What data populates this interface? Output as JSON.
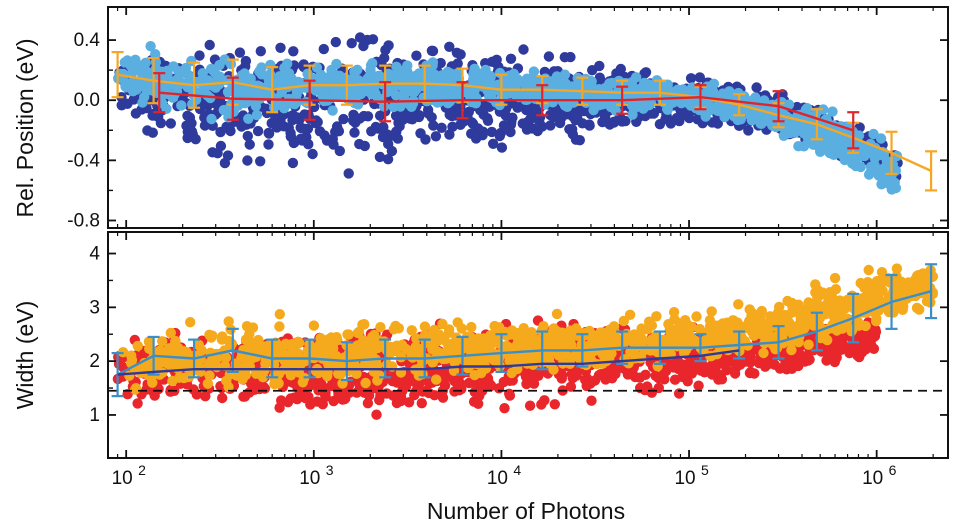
{
  "chart_data": [
    {
      "type": "scatter",
      "panel": "top",
      "ylabel": "Rel. Position (eV)",
      "xscale": "log",
      "xlim": [
        80,
        2400000
      ],
      "ylim": [
        -0.85,
        0.62
      ],
      "yticks": [
        0.4,
        0.0,
        -0.4,
        -0.8
      ],
      "ytick_labels": [
        "0.4",
        "0.0",
        "-0.4",
        "-0.8"
      ],
      "grid": false,
      "series": [
        {
          "color": "#2e3a9c",
          "kind": "scatter-band",
          "x": [
            90,
            150,
            250,
            400,
            700,
            1000,
            1800,
            3000,
            5000,
            9000,
            15000,
            30000,
            60000,
            120000,
            250000,
            500000,
            900000,
            1300000
          ],
          "y_upper": [
            0.3,
            0.45,
            0.5,
            0.5,
            0.5,
            0.52,
            0.55,
            0.55,
            0.5,
            0.42,
            0.38,
            0.3,
            0.25,
            0.2,
            0.12,
            0.0,
            -0.15,
            -0.3
          ],
          "y_lower": [
            -0.1,
            -0.4,
            -0.55,
            -0.55,
            -0.55,
            -0.6,
            -0.6,
            -0.55,
            -0.5,
            -0.45,
            -0.35,
            -0.3,
            -0.25,
            -0.2,
            -0.25,
            -0.35,
            -0.5,
            -0.62
          ]
        },
        {
          "color": "#5aafe0",
          "kind": "scatter-band",
          "x": [
            90,
            150,
            250,
            400,
            700,
            1000,
            2000,
            4000,
            8000,
            15000,
            30000,
            60000,
            120000,
            250000,
            500000,
            900000,
            1300000
          ],
          "y_upper": [
            0.4,
            0.42,
            0.35,
            0.32,
            0.3,
            0.3,
            0.3,
            0.28,
            0.25,
            0.22,
            0.2,
            0.18,
            0.15,
            0.1,
            0.0,
            -0.15,
            -0.3
          ],
          "y_lower": [
            0.0,
            -0.2,
            -0.2,
            -0.18,
            -0.15,
            -0.12,
            -0.1,
            -0.1,
            -0.08,
            -0.08,
            -0.1,
            -0.12,
            -0.15,
            -0.22,
            -0.4,
            -0.6,
            -0.7
          ]
        },
        {
          "color": "#f5a623",
          "kind": "line-errorbar",
          "x": [
            90,
            140,
            230,
            370,
            600,
            950,
            1500,
            2400,
            3900,
            6200,
            10000,
            16500,
            27000,
            44000,
            70000,
            115000,
            185000,
            300000,
            480000,
            750000,
            1200000,
            1950000
          ],
          "y": [
            0.17,
            0.13,
            0.1,
            0.12,
            0.07,
            0.1,
            0.1,
            0.11,
            0.11,
            0.1,
            0.07,
            0.07,
            0.06,
            0.05,
            0.05,
            0.02,
            -0.03,
            -0.1,
            -0.16,
            -0.25,
            -0.35,
            -0.47
          ],
          "err": [
            0.15,
            0.15,
            0.15,
            0.15,
            0.15,
            0.13,
            0.13,
            0.12,
            0.12,
            0.11,
            0.1,
            0.09,
            0.09,
            0.08,
            0.08,
            0.07,
            0.07,
            0.08,
            0.1,
            0.1,
            0.14,
            0.13
          ]
        },
        {
          "color": "#e0242a",
          "kind": "line-errorbar",
          "x": [
            150,
            370,
            950,
            2400,
            6200,
            16500,
            44000,
            115000,
            300000,
            750000
          ],
          "y": [
            0.05,
            0.01,
            0.0,
            -0.01,
            0.0,
            0.0,
            0.0,
            0.02,
            -0.04,
            -0.2
          ],
          "err": [
            0.13,
            0.14,
            0.13,
            0.13,
            0.12,
            0.1,
            0.09,
            0.08,
            0.1,
            0.12
          ]
        }
      ]
    },
    {
      "type": "scatter",
      "panel": "bottom",
      "xlabel": "Number of Photons",
      "ylabel": "Width (eV)",
      "xscale": "log",
      "xlim": [
        80,
        2400000
      ],
      "ylim": [
        0.2,
        4.4
      ],
      "xticks": [
        100,
        1000,
        10000,
        100000,
        1000000
      ],
      "xtick_base": "10",
      "xtick_exponents": [
        "2",
        "3",
        "4",
        "5",
        "6"
      ],
      "yticks": [
        1,
        2,
        3,
        4
      ],
      "ytick_labels": [
        "1",
        "2",
        "3",
        "4"
      ],
      "grid": false,
      "reference_line": {
        "y": 1.45,
        "style": "dashed"
      },
      "series": [
        {
          "color": "#e8262b",
          "kind": "scatter-band",
          "x": [
            90,
            150,
            250,
            400,
            700,
            1000,
            2000,
            4000,
            8000,
            15000,
            30000,
            60000,
            120000,
            250000,
            500000,
            1000000
          ],
          "y_upper": [
            2.4,
            2.6,
            2.7,
            2.7,
            2.8,
            2.9,
            2.9,
            2.9,
            2.9,
            2.9,
            2.9,
            2.8,
            2.7,
            2.7,
            2.8,
            2.9
          ],
          "y_lower": [
            1.2,
            1.0,
            0.9,
            0.8,
            0.7,
            0.7,
            0.7,
            0.8,
            0.9,
            1.0,
            1.2,
            1.3,
            1.4,
            1.6,
            1.8,
            2.0
          ]
        },
        {
          "color": "#f5a91c",
          "kind": "scatter-band",
          "x": [
            90,
            150,
            250,
            400,
            700,
            1000,
            2000,
            4000,
            8000,
            15000,
            30000,
            60000,
            120000,
            250000,
            500000,
            900000,
            1500000,
            2000000
          ],
          "y_upper": [
            2.5,
            2.8,
            2.8,
            2.9,
            2.9,
            2.9,
            2.9,
            2.9,
            2.9,
            2.9,
            2.9,
            3.0,
            3.1,
            3.3,
            3.6,
            3.9,
            4.0,
            3.9
          ],
          "y_lower": [
            1.3,
            1.3,
            1.3,
            1.3,
            1.3,
            1.3,
            1.4,
            1.5,
            1.6,
            1.7,
            1.7,
            1.8,
            1.8,
            1.9,
            2.1,
            2.4,
            2.7,
            2.9
          ]
        },
        {
          "color": "#3a8fc8",
          "kind": "line-errorbar",
          "x": [
            90,
            140,
            230,
            370,
            600,
            950,
            1500,
            2400,
            3900,
            6200,
            10000,
            16500,
            27000,
            44000,
            70000,
            115000,
            185000,
            300000,
            480000,
            750000,
            1200000,
            1950000
          ],
          "y": [
            1.75,
            2.1,
            2.05,
            2.2,
            2.05,
            2.05,
            2.0,
            2.05,
            2.05,
            2.1,
            2.15,
            2.2,
            2.2,
            2.25,
            2.25,
            2.25,
            2.3,
            2.35,
            2.55,
            2.8,
            3.1,
            3.3
          ],
          "err": [
            0.4,
            0.35,
            0.35,
            0.4,
            0.35,
            0.35,
            0.35,
            0.35,
            0.35,
            0.35,
            0.35,
            0.35,
            0.3,
            0.3,
            0.3,
            0.25,
            0.25,
            0.3,
            0.35,
            0.45,
            0.5,
            0.5
          ]
        },
        {
          "color": "#2e3a9c",
          "kind": "line",
          "x": [
            90,
            140,
            230,
            370,
            600,
            950,
            1500,
            2400,
            3900,
            6200,
            10000,
            16500,
            27000,
            44000,
            70000,
            115000,
            185000
          ],
          "y": [
            1.75,
            1.8,
            1.85,
            1.85,
            1.85,
            1.85,
            1.85,
            1.85,
            1.85,
            1.9,
            1.9,
            1.95,
            1.95,
            2.0,
            2.05,
            2.1,
            2.2
          ]
        }
      ]
    }
  ]
}
